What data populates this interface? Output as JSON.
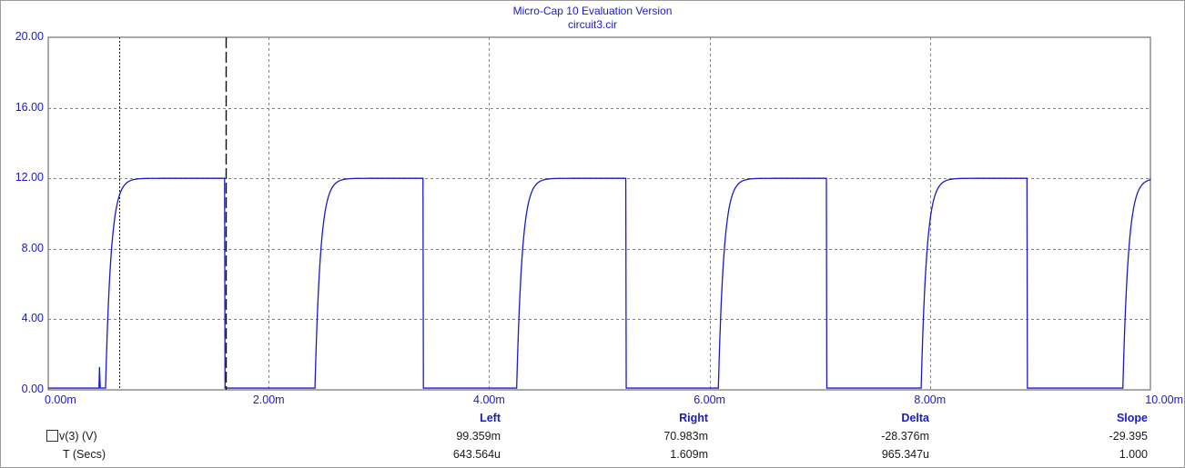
{
  "window": {
    "title_line1": "Micro-Cap 10 Evaluation Version",
    "title_line2": "circuit3.cir"
  },
  "chart_data": {
    "type": "line",
    "xlabel": "",
    "ylabel": "",
    "xlim": [
      0,
      10.0
    ],
    "ylim": [
      0,
      20.0
    ],
    "x_unit": "m",
    "x_ticks": [
      "0.00m",
      "2.00m",
      "4.00m",
      "6.00m",
      "8.00m",
      "10.00m"
    ],
    "y_ticks": [
      "0.00",
      "4.00",
      "8.00",
      "12.00",
      "16.00",
      "20.00"
    ],
    "grid": true,
    "line_color": "#1a1acc",
    "series": [
      {
        "name": "v(3) (V)",
        "pulse_rises_ms": [
          0.52,
          2.42,
          4.25,
          6.08,
          7.92,
          9.75
        ],
        "pulse_falls_ms": [
          1.6,
          3.4,
          5.24,
          7.06,
          8.88
        ],
        "high_level": 12.0,
        "low_level": 0.1,
        "spike": {
          "x_ms": 0.46,
          "y": 1.3
        }
      }
    ],
    "cursors": [
      {
        "name": "Left",
        "x_ms": 0.6436,
        "style": "dotted"
      },
      {
        "name": "Right",
        "x_ms": 1.609,
        "style": "dashed"
      }
    ]
  },
  "measurements": {
    "headers": [
      "Left",
      "Right",
      "Delta",
      "Slope"
    ],
    "rows": [
      {
        "label": "v(3) (V)",
        "values": [
          "99.359m",
          "70.983m",
          "-28.376m",
          "-29.395"
        ]
      },
      {
        "label": "T (Secs)",
        "values": [
          "643.564u",
          "1.609m",
          "965.347u",
          "1.000"
        ]
      }
    ]
  }
}
